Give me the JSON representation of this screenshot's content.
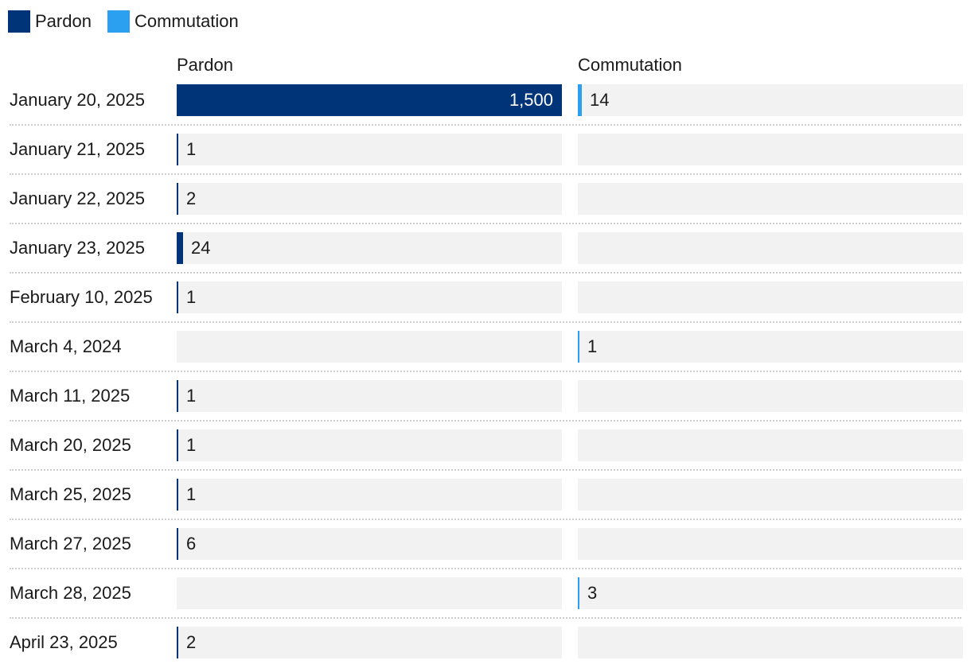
{
  "colors": {
    "pardon": "#003478",
    "commutation": "#2b9ff0",
    "track": "#f2f2f2"
  },
  "legend": [
    {
      "label": "Pardon",
      "color": "#003478"
    },
    {
      "label": "Commutation",
      "color": "#2b9ff0"
    }
  ],
  "chart_data": {
    "type": "bar",
    "orientation": "horizontal",
    "layout": "small-multiples",
    "legend_position": "top-left",
    "categories": [
      "January 20, 2025",
      "January 21, 2025",
      "January 22, 2025",
      "January 23, 2025",
      "February 10, 2025",
      "March 4, 2024",
      "March 11, 2025",
      "March 20, 2025",
      "March 25, 2025",
      "March 27, 2025",
      "March 28, 2025",
      "April 23, 2025"
    ],
    "series": [
      {
        "name": "Pardon",
        "values": [
          1500,
          1,
          2,
          24,
          1,
          null,
          1,
          1,
          1,
          6,
          null,
          2
        ],
        "labels": [
          "1,500",
          "1",
          "2",
          "24",
          "1",
          "",
          "1",
          "1",
          "1",
          "6",
          "",
          "2"
        ],
        "xlim": [
          0,
          1500
        ]
      },
      {
        "name": "Commutation",
        "values": [
          14,
          null,
          null,
          null,
          null,
          1,
          null,
          null,
          null,
          null,
          3,
          null
        ],
        "labels": [
          "14",
          "",
          "",
          "",
          "",
          "1",
          "",
          "",
          "",
          "",
          "3",
          ""
        ],
        "xlim": [
          0,
          1500
        ]
      }
    ]
  }
}
